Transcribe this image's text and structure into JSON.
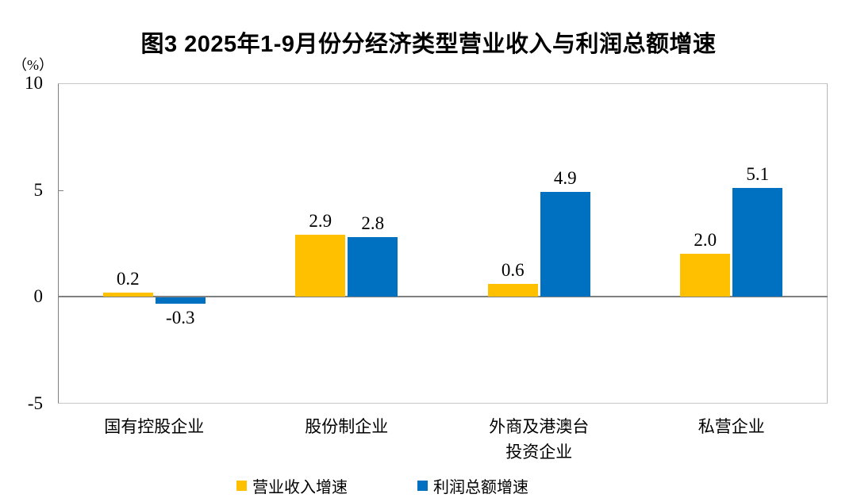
{
  "chart_data": {
    "type": "bar",
    "title": "图3 2025年1-9月份分经济类型营业收入与利润总额增速",
    "unit_label": "（%）",
    "categories": [
      "国有控股企业",
      "股份制企业",
      "外商及港澳台\n投资企业",
      "私营企业"
    ],
    "series": [
      {
        "name": "营业收入增速",
        "color": "#FFC000",
        "values": [
          0.2,
          2.9,
          0.6,
          2.0
        ]
      },
      {
        "name": "利润总额增速",
        "color": "#0070C0",
        "values": [
          -0.3,
          2.8,
          4.9,
          5.1
        ]
      }
    ],
    "ylim": [
      -5,
      10
    ],
    "yticks": [
      10,
      5,
      0,
      -5
    ],
    "value_label_decimals": 1,
    "grid": "zero-line-only",
    "legend_position": "bottom",
    "axis_line_color": "#808080",
    "border_color": "#c8c8c8"
  }
}
